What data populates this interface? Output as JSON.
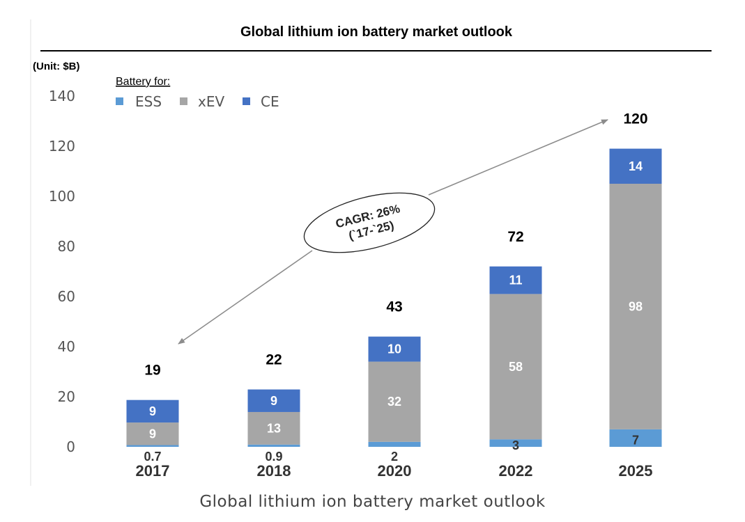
{
  "caption": "Global lithium ion battery market outlook",
  "colors": {
    "ESS": "#5b9bd5",
    "xEV": "#a6a6a6",
    "CE": "#4472c4",
    "arrow": "#8c8c8c"
  },
  "chart_data": {
    "type": "bar",
    "stacked": true,
    "title": "Global lithium ion battery market outlook",
    "unit_label": "(Unit: $B)",
    "legend_title": "Battery for:",
    "legend_position": "top-left",
    "categories": [
      "2017",
      "2018",
      "2020",
      "2022",
      "2025"
    ],
    "series": [
      {
        "name": "ESS",
        "values": [
          0.7,
          0.9,
          2,
          3,
          7
        ],
        "labels": [
          "0.7",
          "0.9",
          "2",
          "3",
          "7"
        ]
      },
      {
        "name": "xEV",
        "values": [
          9,
          13,
          32,
          58,
          98
        ],
        "labels": [
          "9",
          "13",
          "32",
          "58",
          "98"
        ]
      },
      {
        "name": "CE",
        "values": [
          9,
          9,
          10,
          11,
          14
        ],
        "labels": [
          "9",
          "9",
          "10",
          "11",
          "14"
        ]
      }
    ],
    "totals": [
      "19",
      "22",
      "43",
      "72",
      "120"
    ],
    "yticks": [
      0,
      20,
      40,
      60,
      80,
      100,
      120,
      140
    ],
    "ylim": [
      0,
      140
    ],
    "grid": false,
    "annotation": {
      "line1": "CAGR: 26%",
      "line2": "(`17-`25)",
      "from_category": "2017",
      "to_category": "2025"
    }
  }
}
